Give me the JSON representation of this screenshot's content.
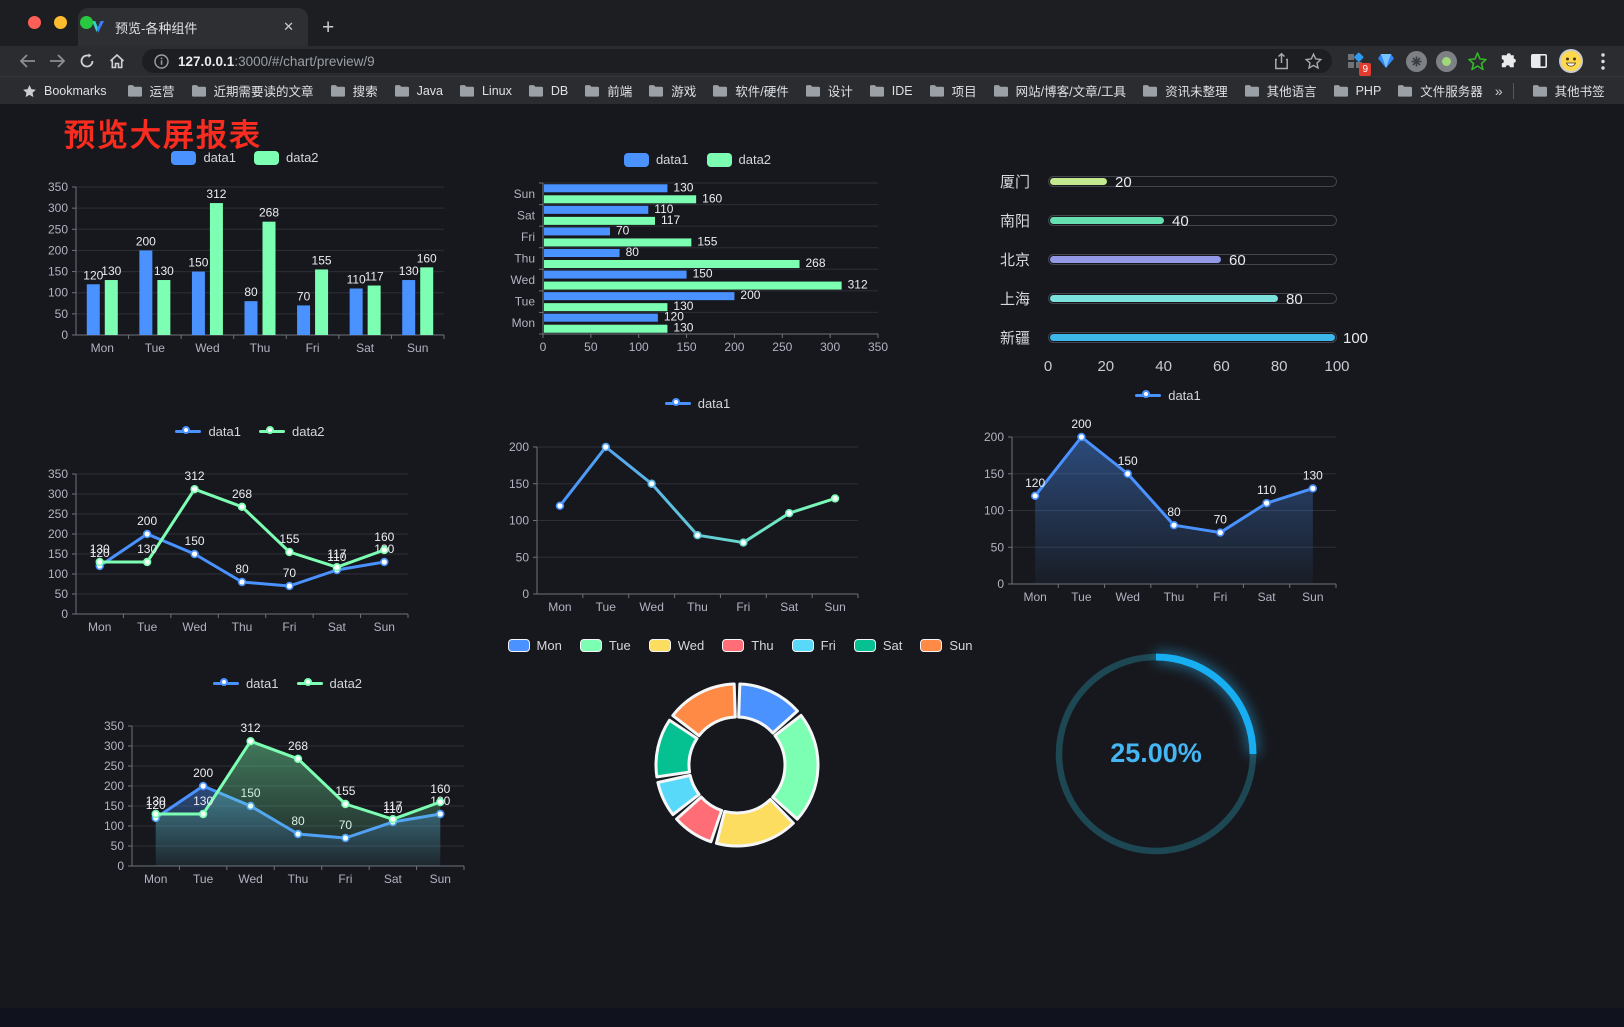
{
  "browser": {
    "window_controls": {
      "close": "#ff5f57",
      "minimize": "#febc2e",
      "zoom": "#28c840"
    },
    "tab": {
      "title": "预览-各种组件",
      "close_glyph": "✕",
      "new_tab_glyph": "+"
    },
    "url": {
      "host": "127.0.0.1",
      "path": ":3000/#/chart/preview/9"
    },
    "toolbar_icons": [
      "back-icon",
      "forward-icon",
      "reload-icon",
      "home-icon",
      "info-icon",
      "share-icon",
      "star-icon"
    ],
    "extension_icons": [
      "grid-extension-icon",
      "diamond-extension-icon",
      "command-extension-icon",
      "dot-extension-icon",
      "green-star-extension-icon",
      "puzzle-extensions-icon",
      "sidebar-icon",
      "profile-avatar",
      "menu-kebab-icon"
    ],
    "extension_badge": "9",
    "bookmarks_label": "Bookmarks",
    "bookmarks": [
      "运营",
      "近期需要读的文章",
      "搜索",
      "Java",
      "Linux",
      "DB",
      "前端",
      "游戏",
      "软件/硬件",
      "设计",
      "IDE",
      "项目",
      "网站/博客/文章/工具",
      "资讯未整理",
      "其他语言",
      "PHP",
      "文件服务器"
    ],
    "bookmarks_overflow": "»",
    "other_bookmarks": "其他书签"
  },
  "page": {
    "title": "预览大屏报表"
  },
  "theme": {
    "axis_text": "#b2b3c2",
    "value_text": "#ecedf2",
    "grid": "#2c2f37",
    "axis_line": "#6e727c",
    "data1": "#4992ff",
    "data2": "#7cffb2"
  },
  "chart_data": {
    "bar_grouped": {
      "type": "bar",
      "categories": [
        "Mon",
        "Tue",
        "Wed",
        "Thu",
        "Fri",
        "Sat",
        "Sun"
      ],
      "series": [
        {
          "name": "data1",
          "color": "#4992ff",
          "values": [
            120,
            200,
            150,
            80,
            70,
            110,
            130
          ]
        },
        {
          "name": "data2",
          "color": "#7cffb2",
          "values": [
            130,
            130,
            312,
            268,
            155,
            117,
            160
          ]
        }
      ],
      "yticks": [
        0,
        50,
        100,
        150,
        200,
        250,
        300,
        350
      ],
      "ymax": 350
    },
    "bar_horizontal": {
      "type": "bar",
      "categories_top_to_bottom": [
        "Sun",
        "Sat",
        "Fri",
        "Thu",
        "Wed",
        "Tue",
        "Mon"
      ],
      "series": [
        {
          "name": "data1",
          "color": "#4992ff",
          "values": [
            130,
            110,
            70,
            80,
            150,
            200,
            120
          ]
        },
        {
          "name": "data2",
          "color": "#7cffb2",
          "values": [
            160,
            117,
            155,
            268,
            312,
            130,
            130
          ]
        }
      ],
      "xticks": [
        0,
        50,
        100,
        150,
        200,
        250,
        300,
        350
      ],
      "xmax": 350
    },
    "progress_bars": {
      "type": "bar",
      "items": [
        {
          "label": "厦门",
          "value": 20,
          "color": "#c3e88d"
        },
        {
          "label": "南阳",
          "value": 40,
          "color": "#67e0b1"
        },
        {
          "label": "北京",
          "value": 60,
          "color": "#9399e6"
        },
        {
          "label": "上海",
          "value": 80,
          "color": "#7ce0dd"
        },
        {
          "label": "新疆",
          "value": 100,
          "color": "#3db7e8"
        }
      ],
      "xticks": [
        0,
        20,
        40,
        60,
        80,
        100
      ],
      "max": 100
    },
    "line_two_series": {
      "type": "line",
      "categories": [
        "Mon",
        "Tue",
        "Wed",
        "Thu",
        "Fri",
        "Sat",
        "Sun"
      ],
      "series": [
        {
          "name": "data1",
          "color": "#4992ff",
          "values": [
            120,
            200,
            150,
            80,
            70,
            110,
            130
          ]
        },
        {
          "name": "data2",
          "color": "#7cffb2",
          "values": [
            130,
            130,
            312,
            268,
            155,
            117,
            160
          ]
        }
      ],
      "yticks": [
        0,
        50,
        100,
        150,
        200,
        250,
        300,
        350
      ],
      "ymax": 350,
      "labels": true
    },
    "line_gradient": {
      "type": "line",
      "categories": [
        "Mon",
        "Tue",
        "Wed",
        "Thu",
        "Fri",
        "Sat",
        "Sun"
      ],
      "series": [
        {
          "name": "data1",
          "color": "#4992ff",
          "gradient": [
            "#4992ff",
            "#7cffb2"
          ],
          "values": [
            120,
            200,
            150,
            80,
            70,
            110,
            130
          ]
        }
      ],
      "yticks": [
        0,
        50,
        100,
        150,
        200
      ],
      "ymax": 200,
      "labels": false
    },
    "area_single": {
      "type": "area",
      "categories": [
        "Mon",
        "Tue",
        "Wed",
        "Thu",
        "Fri",
        "Sat",
        "Sun"
      ],
      "series": [
        {
          "name": "data1",
          "color": "#4992ff",
          "area": true,
          "values": [
            120,
            200,
            150,
            80,
            70,
            110,
            130
          ]
        }
      ],
      "yticks": [
        0,
        50,
        100,
        150,
        200
      ],
      "ymax": 200,
      "labels": true
    },
    "area_two_series": {
      "type": "area",
      "categories": [
        "Mon",
        "Tue",
        "Wed",
        "Thu",
        "Fri",
        "Sat",
        "Sun"
      ],
      "series": [
        {
          "name": "data1",
          "color": "#4992ff",
          "area": true,
          "values": [
            120,
            200,
            150,
            80,
            70,
            110,
            130
          ]
        },
        {
          "name": "data2",
          "color": "#7cffb2",
          "area": true,
          "values": [
            130,
            130,
            312,
            268,
            155,
            117,
            160
          ]
        }
      ],
      "yticks": [
        0,
        50,
        100,
        150,
        200,
        250,
        300,
        350
      ],
      "ymax": 350,
      "labels": true
    },
    "donut": {
      "type": "pie",
      "items": [
        {
          "label": "Mon",
          "value": 120,
          "color": "#4992ff"
        },
        {
          "label": "Tue",
          "value": 200,
          "color": "#7cffb2"
        },
        {
          "label": "Wed",
          "value": 150,
          "color": "#fddd60"
        },
        {
          "label": "Thu",
          "value": 80,
          "color": "#ff6e76"
        },
        {
          "label": "Fri",
          "value": 70,
          "color": "#58d9f9"
        },
        {
          "label": "Sat",
          "value": 110,
          "color": "#05c091"
        },
        {
          "label": "Sun",
          "value": 130,
          "color": "#ff8a45"
        }
      ]
    },
    "gauge": {
      "type": "pie",
      "percent": 25,
      "text": "25.00%",
      "arc_color": "#18aef2",
      "track_color": "#1d4752",
      "text_color": "#44b6f3"
    }
  }
}
